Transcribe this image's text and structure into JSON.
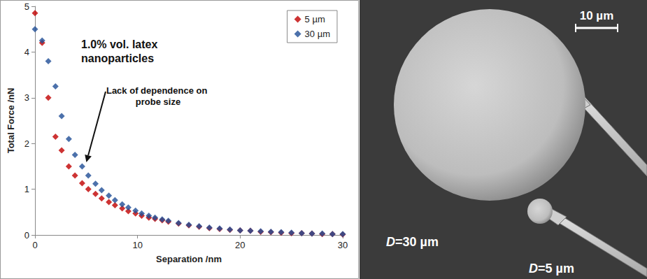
{
  "chart_data": {
    "type": "scatter",
    "x_label": "Separation /nm",
    "y_label": "Total Force /nN",
    "annotations": [
      "1.0% vol. latex nanoparticles",
      "Lack of dependence on probe size"
    ],
    "x": [
      0,
      0.7,
      1.3,
      2,
      2.6,
      3.3,
      3.9,
      4.6,
      5.2,
      5.9,
      6.5,
      7.2,
      7.8,
      8.5,
      9.1,
      9.8,
      10.4,
      11.1,
      11.7,
      12.4,
      13,
      14,
      15,
      16,
      17,
      18,
      19,
      20,
      21,
      22,
      23,
      24,
      25,
      26,
      27,
      28,
      29,
      30
    ],
    "series": [
      {
        "name": "5 µm",
        "color": "#c00000",
        "marker": "diamond",
        "values": [
          4.85,
          4.2,
          3.0,
          2.15,
          1.85,
          1.5,
          1.3,
          1.13,
          1.0,
          0.9,
          0.8,
          0.72,
          0.65,
          0.58,
          0.52,
          0.47,
          0.42,
          0.38,
          0.35,
          0.32,
          0.29,
          0.25,
          0.21,
          0.18,
          0.15,
          0.13,
          0.11,
          0.1,
          0.09,
          0.07,
          0.06,
          0.05,
          0.04,
          0.04,
          0.03,
          0.02,
          0.02,
          0.01
        ]
      },
      {
        "name": "30 µm",
        "color": "#1f4e96",
        "marker": "diamond",
        "values": [
          4.5,
          4.25,
          3.8,
          3.25,
          2.6,
          2.1,
          1.75,
          1.5,
          1.3,
          1.12,
          0.98,
          0.86,
          0.76,
          0.67,
          0.6,
          0.53,
          0.47,
          0.42,
          0.38,
          0.34,
          0.31,
          0.26,
          0.22,
          0.19,
          0.16,
          0.14,
          0.12,
          0.1,
          0.09,
          0.08,
          0.07,
          0.06,
          0.05,
          0.04,
          0.03,
          0.03,
          0.02,
          0.02
        ]
      }
    ],
    "xlim": [
      0,
      30
    ],
    "xticks": [
      0,
      10,
      20,
      30
    ],
    "ylim": [
      0,
      5
    ],
    "yticks": [
      0,
      1,
      2,
      3,
      4,
      5
    ],
    "grid": false,
    "legend": "upper right"
  },
  "image": {
    "scale_bar": "10 µm",
    "probes": [
      "D=30 µm",
      "D=5 µm"
    ]
  }
}
